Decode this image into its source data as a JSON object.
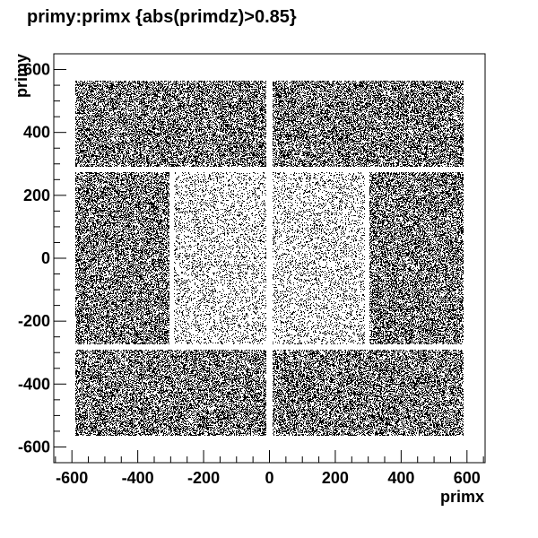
{
  "chart_data": {
    "type": "scatter",
    "title": "primy:primx {abs(primdz)>0.85}",
    "xlabel": "primx",
    "ylabel": "primy",
    "xlim": [
      -655,
      655
    ],
    "ylim": [
      -650,
      650
    ],
    "xticks": [
      -600,
      -400,
      -200,
      0,
      200,
      400,
      600
    ],
    "yticks": [
      -600,
      -400,
      -200,
      0,
      200,
      400,
      600
    ],
    "grid": false,
    "legend": "none",
    "point_color": "#000000",
    "regions": [
      {
        "name": "top-left",
        "x": [
          -590,
          -10
        ],
        "y": [
          290,
          565
        ],
        "density": 0.5
      },
      {
        "name": "top-right",
        "x": [
          10,
          590
        ],
        "y": [
          290,
          565
        ],
        "density": 0.5
      },
      {
        "name": "bottom-left",
        "x": [
          -590,
          -10
        ],
        "y": [
          -565,
          -290
        ],
        "density": 0.5
      },
      {
        "name": "bottom-right",
        "x": [
          10,
          590
        ],
        "y": [
          -565,
          -290
        ],
        "density": 0.5
      },
      {
        "name": "middle-left",
        "x": [
          -590,
          -305
        ],
        "y": [
          -275,
          275
        ],
        "density": 0.5
      },
      {
        "name": "middle-right",
        "x": [
          305,
          590
        ],
        "y": [
          -275,
          275
        ],
        "density": 0.5
      },
      {
        "name": "center-left",
        "x": [
          -290,
          -10
        ],
        "y": [
          -275,
          275
        ],
        "density": 0.18
      },
      {
        "name": "center-right",
        "x": [
          10,
          290
        ],
        "y": [
          -275,
          275
        ],
        "density": 0.18
      }
    ]
  }
}
